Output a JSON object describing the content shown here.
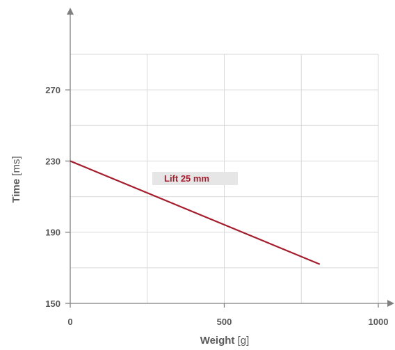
{
  "chart_data": {
    "type": "line",
    "x_axis": {
      "title": "Weight",
      "unit": "[g]",
      "range": [
        0,
        1000
      ],
      "ticks": [
        0,
        500,
        1000
      ],
      "tick_labels": [
        "0",
        "500",
        "1000"
      ],
      "minor_grid": [
        250,
        750
      ]
    },
    "y_axis": {
      "title": "Time",
      "unit": "[ms]",
      "range": [
        150,
        290
      ],
      "ticks": [
        150,
        190,
        230,
        270
      ],
      "tick_labels": [
        "150",
        "190",
        "230",
        "270"
      ],
      "minor_grid": [
        170,
        210,
        250,
        290
      ]
    },
    "series": [
      {
        "color": "#a51d2d",
        "x": [
          0,
          810
        ],
        "y": [
          230,
          172
        ]
      }
    ],
    "annotations": [
      {
        "text": "Lift 25 mm",
        "color": "#a51d2d",
        "background": "#e6e6e6"
      }
    ],
    "grid": true
  }
}
